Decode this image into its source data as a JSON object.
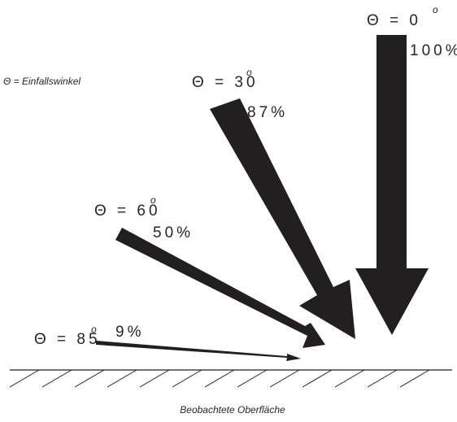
{
  "legend": "Θ = Einfallswinkel",
  "surface_label": "Beobachtete Oberfläche",
  "arrow_color": "#231f20",
  "beams": [
    {
      "angle": "Θ = 0",
      "degree_mark": "o",
      "percent": "100%"
    },
    {
      "angle": "Θ = 30",
      "degree_mark": "o",
      "percent": "87%"
    },
    {
      "angle": "Θ = 60",
      "degree_mark": "o",
      "percent": "50%"
    },
    {
      "angle": "Θ = 85",
      "degree_mark": "o",
      "percent": "9%"
    }
  ]
}
